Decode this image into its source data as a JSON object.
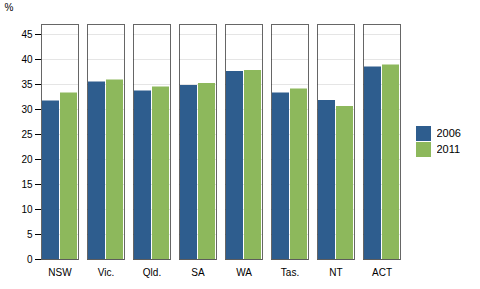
{
  "chart_data": {
    "type": "bar",
    "ylabel": "%",
    "categories": [
      "NSW",
      "Vic.",
      "Qld.",
      "SA",
      "WA",
      "Tas.",
      "NT",
      "ACT"
    ],
    "series": [
      {
        "name": "2006",
        "color": "#2E5D8E",
        "values": [
          31.7,
          35.5,
          33.7,
          34.8,
          37.6,
          33.3,
          31.8,
          38.5
        ]
      },
      {
        "name": "2011",
        "color": "#8DB85C",
        "values": [
          33.3,
          35.9,
          34.5,
          35.2,
          37.8,
          34.1,
          30.6,
          38.9
        ]
      }
    ],
    "ylim": [
      0,
      47
    ],
    "yticks": [
      0,
      5,
      10,
      15,
      20,
      25,
      30,
      35,
      40,
      45
    ],
    "grid": true,
    "legend": "right"
  }
}
